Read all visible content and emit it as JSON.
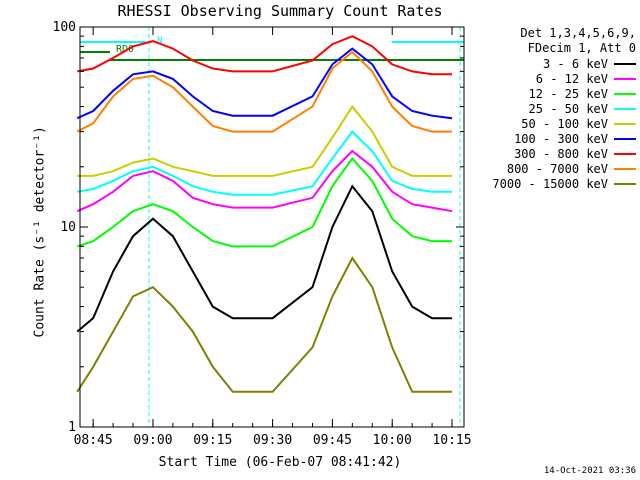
{
  "chart_data": {
    "type": "line",
    "title": "RHESSI Observing Summary Count Rates",
    "xlabel": "Start Time (06-Feb-07 08:41:42)",
    "ylabel": "Count Rate (s⁻¹ detector⁻¹)",
    "yscale": "log",
    "ylim": [
      1,
      100
    ],
    "xlim": [
      "08:41:42",
      "10:18:00"
    ],
    "xticks": [
      "08:45",
      "09:00",
      "09:15",
      "09:30",
      "09:45",
      "10:00",
      "10:15"
    ],
    "yticks": [
      "1",
      "10",
      "100"
    ],
    "legend_header": [
      "Det 1,3,4,5,6,9,",
      "FDecim 1, Att 0"
    ],
    "legend_position": "right",
    "flag_labels": [
      "RD0",
      "N"
    ],
    "series": [
      {
        "name": "3 - 6 keV",
        "color": "#000000",
        "x": [
          "08:41",
          "08:45",
          "08:50",
          "08:55",
          "09:00",
          "09:05",
          "09:10",
          "09:15",
          "09:20",
          "09:30",
          "09:40",
          "09:45",
          "09:50",
          "09:55",
          "10:00",
          "10:05",
          "10:10",
          "10:15"
        ],
        "y": [
          3,
          3.5,
          6,
          9,
          11,
          9,
          6,
          4,
          3.5,
          3.5,
          5,
          10,
          16,
          12,
          6,
          4,
          3.5,
          3.5
        ]
      },
      {
        "name": "6 - 12 keV",
        "color": "#ff00ff",
        "x": [
          "08:41",
          "08:45",
          "08:50",
          "08:55",
          "09:00",
          "09:05",
          "09:10",
          "09:15",
          "09:20",
          "09:30",
          "09:40",
          "09:45",
          "09:50",
          "09:55",
          "10:00",
          "10:05",
          "10:10",
          "10:15"
        ],
        "y": [
          12,
          13,
          15,
          18,
          19,
          17,
          14,
          13,
          12.5,
          12.5,
          14,
          19,
          24,
          20,
          15,
          13,
          12.5,
          12
        ]
      },
      {
        "name": "12 - 25 keV",
        "color": "#00ff00",
        "x": [
          "08:41",
          "08:45",
          "08:50",
          "08:55",
          "09:00",
          "09:05",
          "09:10",
          "09:15",
          "09:20",
          "09:30",
          "09:40",
          "09:45",
          "09:50",
          "09:55",
          "10:00",
          "10:05",
          "10:10",
          "10:15"
        ],
        "y": [
          8,
          8.5,
          10,
          12,
          13,
          12,
          10,
          8.5,
          8,
          8,
          10,
          16,
          22,
          17,
          11,
          9,
          8.5,
          8.5
        ]
      },
      {
        "name": "25 - 50 keV",
        "color": "#00ffff",
        "x": [
          "08:41",
          "08:45",
          "08:50",
          "08:55",
          "09:00",
          "09:05",
          "09:10",
          "09:15",
          "09:20",
          "09:30",
          "09:40",
          "09:45",
          "09:50",
          "09:55",
          "10:00",
          "10:05",
          "10:10",
          "10:15"
        ],
        "y": [
          15,
          15.5,
          17,
          19,
          20,
          18,
          16,
          15,
          14.5,
          14.5,
          16,
          22,
          30,
          24,
          17,
          15.5,
          15,
          15
        ]
      },
      {
        "name": "50 - 100 keV",
        "color": "#cccc00",
        "x": [
          "08:41",
          "08:45",
          "08:50",
          "08:55",
          "09:00",
          "09:05",
          "09:10",
          "09:15",
          "09:20",
          "09:30",
          "09:40",
          "09:45",
          "09:50",
          "09:55",
          "10:00",
          "10:05",
          "10:10",
          "10:15"
        ],
        "y": [
          18,
          18,
          19,
          21,
          22,
          20,
          19,
          18,
          18,
          18,
          20,
          28,
          40,
          30,
          20,
          18,
          18,
          18
        ]
      },
      {
        "name": "100 - 300 keV",
        "color": "#0000ff",
        "x": [
          "08:41",
          "08:45",
          "08:50",
          "08:55",
          "09:00",
          "09:05",
          "09:10",
          "09:15",
          "09:20",
          "09:30",
          "09:40",
          "09:45",
          "09:50",
          "09:55",
          "10:00",
          "10:05",
          "10:10",
          "10:15"
        ],
        "y": [
          35,
          38,
          48,
          58,
          60,
          55,
          45,
          38,
          36,
          36,
          45,
          65,
          78,
          65,
          45,
          38,
          36,
          35
        ]
      },
      {
        "name": "300 - 800 keV",
        "color": "#ff0000",
        "x": [
          "08:41",
          "08:45",
          "08:50",
          "08:55",
          "09:00",
          "09:05",
          "09:10",
          "09:15",
          "09:20",
          "09:30",
          "09:40",
          "09:45",
          "09:50",
          "09:55",
          "10:00",
          "10:05",
          "10:10",
          "10:15"
        ],
        "y": [
          60,
          62,
          70,
          80,
          85,
          78,
          68,
          62,
          60,
          60,
          68,
          82,
          90,
          80,
          65,
          60,
          58,
          58
        ]
      },
      {
        "name": "800 - 7000 keV",
        "color": "#ff8000",
        "x": [
          "08:41",
          "08:45",
          "08:50",
          "08:55",
          "09:00",
          "09:05",
          "09:10",
          "09:15",
          "09:20",
          "09:30",
          "09:40",
          "09:45",
          "09:50",
          "09:55",
          "10:00",
          "10:05",
          "10:10",
          "10:15"
        ],
        "y": [
          30,
          33,
          45,
          55,
          57,
          50,
          40,
          32,
          30,
          30,
          40,
          62,
          75,
          60,
          40,
          32,
          30,
          30
        ]
      },
      {
        "name": "7000 - 15000 keV",
        "color": "#808000",
        "x": [
          "08:41",
          "08:45",
          "08:50",
          "08:55",
          "09:00",
          "09:05",
          "09:10",
          "09:15",
          "09:20",
          "09:30",
          "09:40",
          "09:45",
          "09:50",
          "09:55",
          "10:00",
          "10:05",
          "10:10",
          "10:15"
        ],
        "y": [
          1.5,
          2,
          3,
          4.5,
          5,
          4,
          3,
          2,
          1.5,
          1.5,
          2.5,
          4.5,
          7,
          5,
          2.5,
          1.5,
          1.5,
          1.5
        ]
      }
    ]
  },
  "footer": {
    "date": "14-Oct-2021 03:36"
  }
}
